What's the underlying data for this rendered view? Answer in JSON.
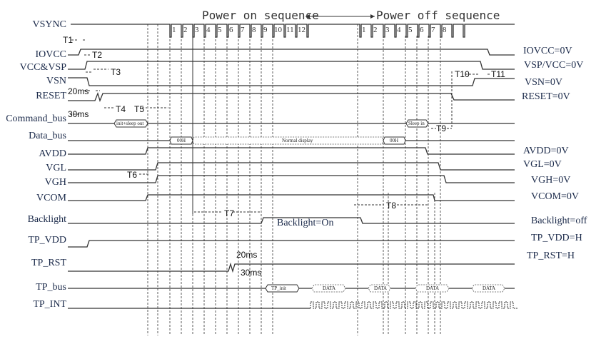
{
  "titles": {
    "power_on": "Power on sequence",
    "power_off": "Power off sequence"
  },
  "signals": [
    "VSYNC",
    "IOVCC",
    "VCC&VSP",
    "VSN",
    "RESET",
    "Command_bus",
    "Data_bus",
    "AVDD",
    "VGL",
    "VGH",
    "VCOM",
    "Backlight",
    "TP_VDD",
    "TP_RST",
    "TP_bus",
    "TP_INT"
  ],
  "end_states": [
    "IOVCC=0V",
    "VSP/VCC=0V",
    "VSN=0V",
    "RESET=0V",
    "AVDD=0V",
    "VGL=0V",
    "VGH=0V",
    "VCOM=0V",
    "Backlight=off",
    "TP_VDD=H",
    "TP_RST=H"
  ],
  "vsync_on_frames": [
    "1",
    "2",
    "3",
    "4",
    "5",
    "6",
    "7",
    "8",
    "9",
    "10",
    "11",
    "12"
  ],
  "vsync_off_frames": [
    "1",
    "2",
    "3",
    "4",
    "5",
    "6",
    "7",
    "8"
  ],
  "timings": {
    "t1": "T1",
    "t2": "T2",
    "t3": "T3",
    "t4": "T4",
    "t5": "T5",
    "t6": "T6",
    "t7": "T7",
    "t8": "T8",
    "t9": "T9",
    "t10": "T10",
    "t11": "T11",
    "reset_20": "20ms",
    "reset_30": "30ms",
    "tp_20": "20ms",
    "tp_30": "30ms"
  },
  "bus": {
    "init": "init+sleep out",
    "sleep_in": "Sleep in",
    "ooh_on": "00H",
    "normal": "Normal display",
    "ooh_off": "00H",
    "backlight_on": "Backlight=On",
    "tp_init": "TP_init",
    "data": "DATA"
  }
}
